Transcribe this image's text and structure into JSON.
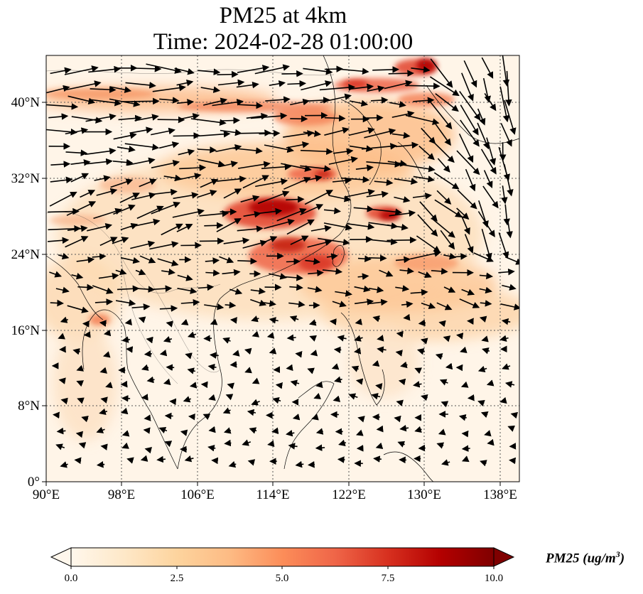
{
  "title": {
    "line1": "PM25 at 4km",
    "line2": "Time: 2024-02-28 01:00:00"
  },
  "map": {
    "region": "East & Southeast Asia",
    "lon_range": [
      90,
      140
    ],
    "lat_range": [
      0,
      45
    ],
    "gridlines": "dotted",
    "lon_ticks": [
      "90°E",
      "98°E",
      "106°E",
      "114°E",
      "122°E",
      "130°E",
      "138°E"
    ],
    "lat_ticks": [
      "0°",
      "8°N",
      "16°N",
      "24°N",
      "32°N",
      "40°N"
    ],
    "prevailing_wind": "westerly in north, weak easterly in south",
    "overlay": "wind vectors (black arrows)"
  },
  "colorbar": {
    "colormap": "OrRd",
    "min": 0.0,
    "max": 10.0,
    "ticks": [
      "0.0",
      "2.5",
      "5.0",
      "7.5",
      "10.0"
    ],
    "extend": "both",
    "label_main": "PM25 (ug/m",
    "label_sup": "3",
    "label_close": ")",
    "colors": [
      "#fff7ec",
      "#fee8c8",
      "#fdd49e",
      "#fdbb84",
      "#fc8d59",
      "#ef6548",
      "#d7301f",
      "#b30000",
      "#7f0000"
    ]
  }
}
